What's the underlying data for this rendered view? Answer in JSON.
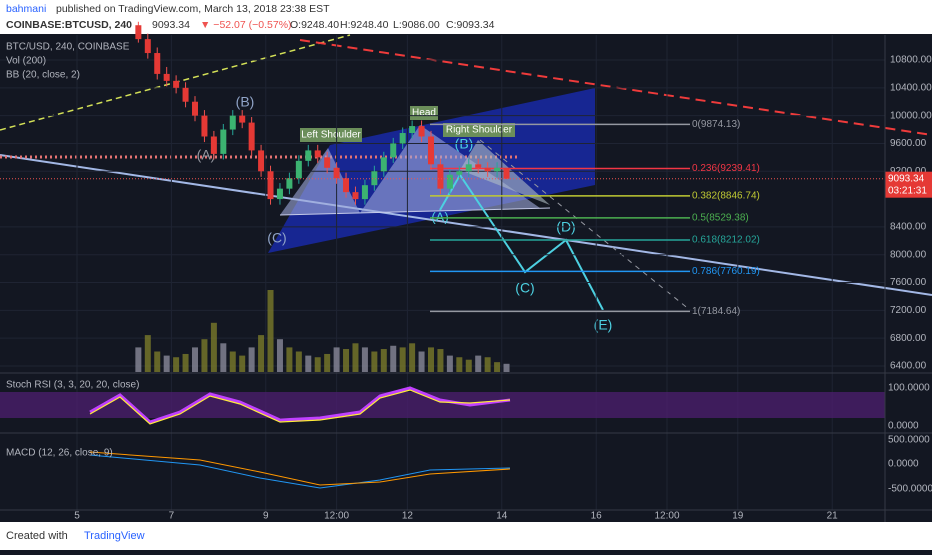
{
  "header": {
    "author": "bahmani",
    "published": "published on TradingView.com, March 13, 2018 23:38 EST",
    "symbol": "COINBASE:BTCUSD, 240",
    "last": "9093.34",
    "change": "▼ −52.07 (−0.57%)",
    "open": "O:9248.40",
    "high": "H:9248.40",
    "low": "L:9086.00",
    "close": "C:9093.34"
  },
  "legend": [
    "BTC/USD, 240, COINBASE",
    "Vol (200)",
    "BB (20, close, 2)"
  ],
  "price_axis": {
    "ticks": [
      {
        "value": 10800,
        "label": "10800.00"
      },
      {
        "value": 10400,
        "label": "10400.00"
      },
      {
        "value": 10000,
        "label": "10000.00"
      },
      {
        "value": 9600,
        "label": "9600.00"
      },
      {
        "value": 9200,
        "label": "9200.00"
      },
      {
        "value": 8400,
        "label": "8400.00"
      },
      {
        "value": 8000,
        "label": "8000.00"
      },
      {
        "value": 7600,
        "label": "7600.00"
      },
      {
        "value": 7200,
        "label": "7200.00"
      },
      {
        "value": 6800,
        "label": "6800.00"
      },
      {
        "value": 6400,
        "label": "6400.00"
      }
    ],
    "price_tag": {
      "value": 9093.34,
      "label": "9093.34"
    },
    "countdown": "03:21:31"
  },
  "time_axis": {
    "ticks": [
      {
        "value": 5,
        "label": "5"
      },
      {
        "value": 7,
        "label": "7"
      },
      {
        "value": 9,
        "label": "9"
      },
      {
        "value": 10.5,
        "label": "12:00"
      },
      {
        "value": 12,
        "label": "12"
      },
      {
        "value": 14,
        "label": "14"
      },
      {
        "value": 16,
        "label": "16"
      },
      {
        "value": 17.5,
        "label": "12:00"
      },
      {
        "value": 19,
        "label": "19"
      },
      {
        "value": 21,
        "label": "21"
      }
    ]
  },
  "candles": [
    [
      11300,
      11350,
      11050,
      11100
    ],
    [
      11100,
      11180,
      10820,
      10900
    ],
    [
      10900,
      10980,
      10520,
      10600
    ],
    [
      10600,
      10700,
      10420,
      10500
    ],
    [
      10500,
      10580,
      10320,
      10400
    ],
    [
      10400,
      10480,
      10120,
      10200
    ],
    [
      10200,
      10280,
      9920,
      10000
    ],
    [
      10000,
      10080,
      9620,
      9700
    ],
    [
      9700,
      9780,
      9370,
      9450
    ],
    [
      9450,
      9880,
      9370,
      9800
    ],
    [
      9800,
      10080,
      9720,
      10000
    ],
    [
      10000,
      10080,
      9820,
      9900
    ],
    [
      9900,
      9980,
      9420,
      9500
    ],
    [
      9500,
      9580,
      9120,
      9200
    ],
    [
      9200,
      9280,
      8720,
      8800
    ],
    [
      8800,
      9030,
      8720,
      8950
    ],
    [
      8950,
      9180,
      8870,
      9100
    ],
    [
      9100,
      9430,
      9020,
      9350
    ],
    [
      9350,
      9580,
      9270,
      9500
    ],
    [
      9500,
      9580,
      9320,
      9400
    ],
    [
      9400,
      9480,
      9170,
      9250
    ],
    [
      9250,
      9330,
      9020,
      9100
    ],
    [
      9100,
      9180,
      8820,
      8900
    ],
    [
      8900,
      8980,
      8720,
      8800
    ],
    [
      8800,
      9080,
      8720,
      9000
    ],
    [
      9000,
      9280,
      8920,
      9200
    ],
    [
      9200,
      9480,
      9120,
      9400
    ],
    [
      9400,
      9680,
      9320,
      9600
    ],
    [
      9600,
      9830,
      9520,
      9750
    ],
    [
      9750,
      9930,
      9670,
      9850
    ],
    [
      9850,
      9930,
      9620,
      9700
    ],
    [
      9700,
      9780,
      9220,
      9300
    ],
    [
      9300,
      9380,
      8870,
      8950
    ],
    [
      8950,
      9230,
      8870,
      9150
    ],
    [
      9150,
      9280,
      9070,
      9200
    ],
    [
      9200,
      9380,
      9120,
      9300
    ],
    [
      9300,
      9380,
      9170,
      9250
    ],
    [
      9250,
      9330,
      9120,
      9200
    ],
    [
      9200,
      9330,
      9120,
      9250
    ],
    [
      9248.4,
      9248.4,
      9086,
      9093.34
    ]
  ],
  "volumes": [
    30,
    45,
    25,
    20,
    18,
    22,
    30,
    40,
    60,
    35,
    25,
    20,
    30,
    45,
    100,
    40,
    30,
    25,
    20,
    18,
    22,
    30,
    28,
    35,
    30,
    25,
    28,
    32,
    30,
    35,
    25,
    30,
    28,
    20,
    18,
    15,
    20,
    18,
    12,
    10
  ],
  "fib": [
    {
      "value": 9874.13,
      "label": "0(9874.13)",
      "color": "#9598a1"
    },
    {
      "value": 9239.41,
      "label": "0.236(9239.41)",
      "color": "#f23645"
    },
    {
      "value": 8846.74,
      "label": "0.382(8846.74)",
      "color": "#c0ca33"
    },
    {
      "value": 8529.38,
      "label": "0.5(8529.38)",
      "color": "#4caf50"
    },
    {
      "value": 8212.02,
      "label": "0.618(8212.02)",
      "color": "#26a69a"
    },
    {
      "value": 7760.19,
      "label": "0.786(7760.19)",
      "color": "#2196f3"
    },
    {
      "value": 7184.64,
      "label": "1(7184.64)",
      "color": "#9598a1"
    }
  ],
  "annotations": {
    "left_shoulder": "Left Shoulder",
    "head": "Head",
    "right_shoulder": "Right Shoulder",
    "waves": [
      "(A)",
      "(B)",
      "(C)",
      "(A)",
      "(B)",
      "(C)",
      "(D)",
      "(E)"
    ]
  },
  "stoch": {
    "label": "Stoch RSI (3, 3, 20, 20, close)",
    "ticks": [
      "100.0000",
      "0.0000"
    ]
  },
  "macd": {
    "label": "MACD (12, 26, close, 9)",
    "ticks": [
      "500.0000",
      "0.0000",
      "-500.0000"
    ]
  },
  "footer": {
    "created": "Created with",
    "brand": "TradingView"
  }
}
